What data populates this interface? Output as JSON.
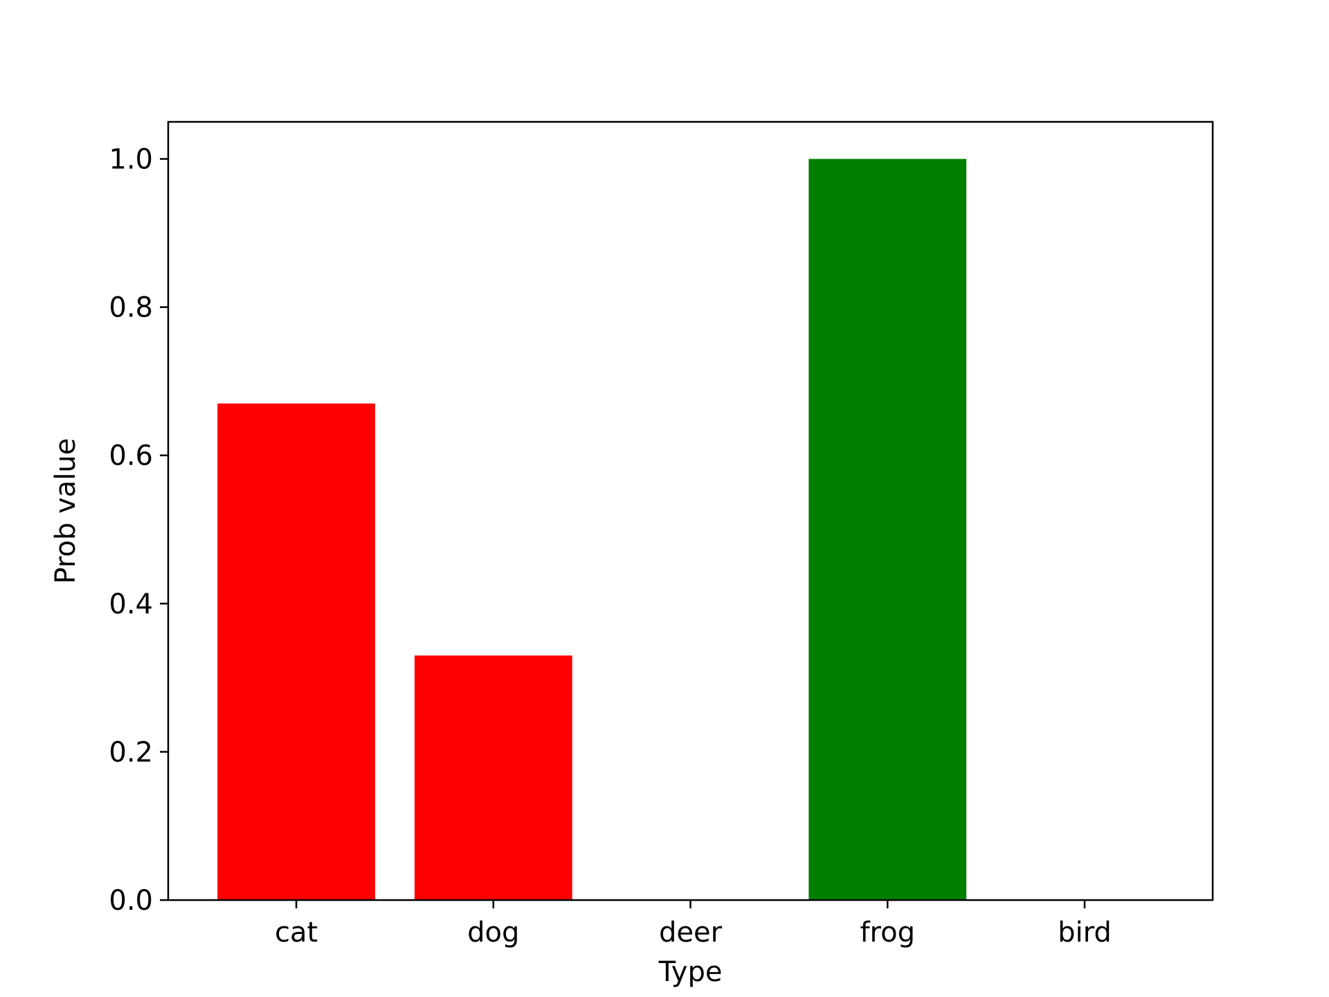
{
  "chart_data": {
    "type": "bar",
    "categories": [
      "cat",
      "dog",
      "deer",
      "frog",
      "bird"
    ],
    "values": [
      0.67,
      0.33,
      0.0,
      1.0,
      0.0
    ],
    "bar_colors": [
      "#ff0000",
      "#ff0000",
      "#ff0000",
      "#008000",
      "#ff0000"
    ],
    "xlabel": "Type",
    "ylabel": "Prob value",
    "ylim": [
      0,
      1.05
    ],
    "yticks": [
      0.0,
      0.2,
      0.4,
      0.6,
      0.8,
      1.0
    ],
    "ytick_labels": [
      "0.0",
      "0.2",
      "0.4",
      "0.6",
      "0.8",
      "1.0"
    ],
    "grid": false,
    "legend": false
  }
}
